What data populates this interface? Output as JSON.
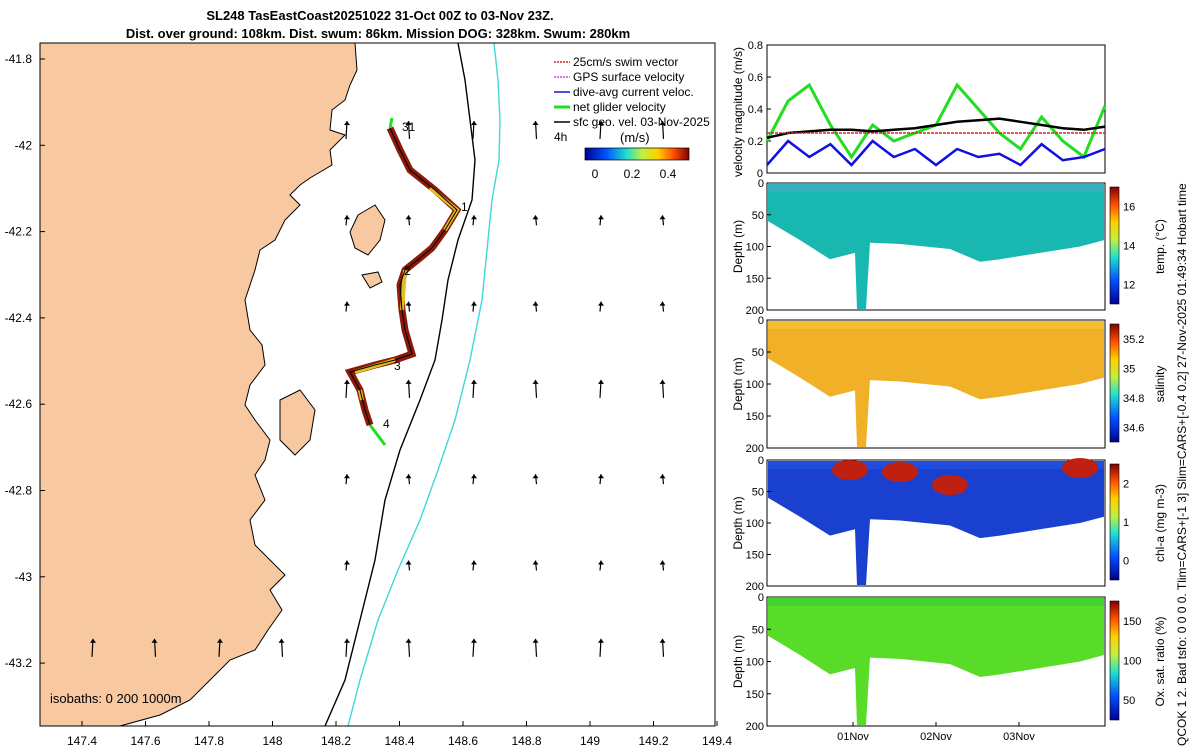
{
  "header": {
    "line1": "SL248 TasEastCoast20251022 31-Oct 00Z to 03-Nov 23Z.",
    "line2": "Dist. over ground: 108km. Dist. swum: 86km. Mission DOG: 328km. Swum: 280km"
  },
  "side_note": "QCOK 1 2. Bad tsfo: 0 0 0 0. Tlim=CARS+[-1 3] Slim=CARS+[-0.4 0.2] 27-Nov-2025 01:49:34 Hobart time",
  "map": {
    "x_ticks": [
      "147.4",
      "147.6",
      "147.8",
      "148",
      "148.2",
      "148.4",
      "148.6",
      "148.8",
      "149",
      "149.2",
      "149.4"
    ],
    "y_ticks": [
      "-41.8",
      "-42",
      "-42.2",
      "-42.4",
      "-42.6",
      "-42.8",
      "-43",
      "-43.2"
    ],
    "isobaths_label": "isobaths: 0   200  1000m",
    "day_labels": [
      "31",
      "1",
      "2",
      "3",
      "4"
    ],
    "legend": [
      {
        "label": "25cm/s swim vector",
        "color": "#e02020"
      },
      {
        "label": "GPS surface velocity",
        "color": "#e040e0"
      },
      {
        "label": "dive-avg current veloc.",
        "color": "#1010e0"
      },
      {
        "label": "net glider velocity",
        "color": "#22dd22"
      },
      {
        "label": "sfc geo. vel. 03-Nov-2025",
        "color": "#000000"
      }
    ],
    "legend_extra": "4h",
    "colorbar_units": "(m/s)",
    "colorbar_ticks": [
      "0",
      "0.2",
      "0.4"
    ],
    "colors": {
      "land": "#f8c8a0",
      "isobath200": "#000000",
      "isobath1000": "#40d8d8"
    }
  },
  "chart_data": [
    {
      "type": "line",
      "title": "",
      "ylabel": "velocity magnitude (m/s)",
      "ylim": [
        0,
        0.8
      ],
      "yticks": [
        "0",
        "0.2",
        "0.4",
        "0.6",
        "0.8"
      ],
      "x": [
        0,
        0.25,
        0.5,
        0.75,
        1,
        1.25,
        1.5,
        1.75,
        2,
        2.25,
        2.5,
        2.75,
        3,
        3.25,
        3.5,
        3.75,
        4
      ],
      "series": [
        {
          "name": "net glider velocity",
          "color": "#22dd22",
          "values": [
            0.2,
            0.45,
            0.55,
            0.3,
            0.1,
            0.3,
            0.2,
            0.25,
            0.3,
            0.55,
            0.4,
            0.25,
            0.15,
            0.35,
            0.2,
            0.1,
            0.42
          ]
        },
        {
          "name": "dive-avg current veloc.",
          "color": "#1010e0",
          "values": [
            0.05,
            0.2,
            0.1,
            0.18,
            0.05,
            0.2,
            0.1,
            0.15,
            0.05,
            0.15,
            0.1,
            0.12,
            0.05,
            0.18,
            0.08,
            0.1,
            0.15
          ]
        },
        {
          "name": "sfc geo. vel.",
          "color": "#000000",
          "values": [
            0.22,
            0.25,
            0.26,
            0.27,
            0.27,
            0.26,
            0.27,
            0.28,
            0.3,
            0.32,
            0.33,
            0.34,
            0.32,
            0.3,
            0.28,
            0.27,
            0.29
          ]
        },
        {
          "name": "25cm/s swim vector",
          "color": "#e02020",
          "values": [
            0.25,
            0.25,
            0.25,
            0.25,
            0.25,
            0.25,
            0.25,
            0.25,
            0.25,
            0.25,
            0.25,
            0.25,
            0.25,
            0.25,
            0.25,
            0.25,
            0.25
          ]
        }
      ]
    },
    {
      "type": "heatmap",
      "variable": "temperature",
      "ylabel": "Depth (m)",
      "clabel": "temp. (°C)",
      "ylim": [
        0,
        200
      ],
      "yticks": [
        "0",
        "50",
        "100",
        "150",
        "200"
      ],
      "cticks": [
        "12",
        "14",
        "16"
      ]
    },
    {
      "type": "heatmap",
      "variable": "salinity",
      "ylabel": "Depth (m)",
      "clabel": "salinity",
      "ylim": [
        0,
        200
      ],
      "yticks": [
        "0",
        "50",
        "100",
        "150",
        "200"
      ],
      "cticks": [
        "34.6",
        "34.8",
        "35",
        "35.2"
      ]
    },
    {
      "type": "heatmap",
      "variable": "chlorophyll",
      "ylabel": "Depth (m)",
      "clabel": "chl-a  (mg m-3)",
      "ylim": [
        0,
        200
      ],
      "yticks": [
        "0",
        "50",
        "100",
        "150",
        "200"
      ],
      "cticks": [
        "0",
        "1",
        "2"
      ]
    },
    {
      "type": "heatmap",
      "variable": "oxygen",
      "ylabel": "Depth (m)",
      "clabel": "Ox. sat. ratio (%)",
      "ylim": [
        0,
        200
      ],
      "yticks": [
        "0",
        "50",
        "100",
        "150",
        "200"
      ],
      "cticks": [
        "50",
        "100",
        "150"
      ],
      "xticks": [
        "01Nov",
        "02Nov",
        "03Nov"
      ]
    }
  ]
}
